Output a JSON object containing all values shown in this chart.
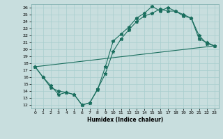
{
  "title": "",
  "xlabel": "Humidex (Indice chaleur)",
  "xlim": [
    -0.5,
    23.5
  ],
  "ylim": [
    11.5,
    26.5
  ],
  "xticks": [
    0,
    1,
    2,
    3,
    4,
    5,
    6,
    7,
    8,
    9,
    10,
    11,
    12,
    13,
    14,
    15,
    16,
    17,
    18,
    19,
    20,
    21,
    22,
    23
  ],
  "yticks": [
    12,
    13,
    14,
    15,
    16,
    17,
    18,
    19,
    20,
    21,
    22,
    23,
    24,
    25,
    26
  ],
  "bg_color": "#c8dede",
  "line_color": "#1a6e5e",
  "grid_color": "#a8cece",
  "line1_x": [
    0,
    1,
    2,
    3,
    4,
    5,
    6,
    7,
    8,
    9,
    10,
    11,
    12,
    13,
    14,
    15,
    16,
    17,
    18,
    19,
    20,
    21,
    22,
    23
  ],
  "line1_y": [
    17.5,
    16.0,
    14.5,
    14.0,
    13.8,
    13.5,
    12.0,
    12.3,
    14.2,
    17.5,
    21.2,
    22.2,
    23.2,
    24.5,
    25.2,
    26.2,
    25.5,
    26.0,
    25.5,
    25.0,
    24.5,
    22.0,
    20.8,
    20.5
  ],
  "line2_x": [
    0,
    1,
    2,
    3,
    4,
    5,
    6,
    7,
    8,
    9,
    10,
    11,
    12,
    13,
    14,
    15,
    16,
    17,
    18,
    19,
    20,
    21,
    22,
    23
  ],
  "line2_y": [
    17.5,
    16.0,
    14.8,
    13.5,
    13.8,
    13.5,
    12.0,
    12.3,
    14.3,
    16.5,
    19.7,
    21.5,
    22.8,
    24.0,
    24.8,
    25.2,
    25.8,
    25.5,
    25.5,
    24.8,
    24.5,
    21.5,
    21.0,
    20.5
  ],
  "line3_x": [
    0,
    23
  ],
  "line3_y": [
    17.5,
    20.5
  ]
}
